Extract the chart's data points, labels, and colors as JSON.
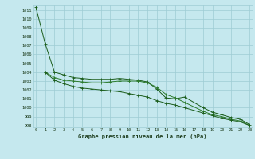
{
  "title": "Graphe pression niveau de la mer (hPa)",
  "background_color": "#c5e8ee",
  "grid_color": "#9eccd4",
  "line_color_dark": "#1a5c1a",
  "line_color_mid": "#2a7a2a",
  "xlim": [
    -0.3,
    23.3
  ],
  "ylim": [
    997.8,
    1011.6
  ],
  "yticks": [
    998,
    999,
    1000,
    1001,
    1002,
    1003,
    1004,
    1005,
    1006,
    1007,
    1008,
    1009,
    1010,
    1011
  ],
  "xticks": [
    0,
    1,
    2,
    3,
    4,
    5,
    6,
    7,
    8,
    9,
    10,
    11,
    12,
    13,
    14,
    15,
    16,
    17,
    18,
    19,
    20,
    21,
    22,
    23
  ],
  "series1": {
    "x": [
      0,
      1,
      2,
      3,
      4,
      5,
      6,
      7,
      8,
      9,
      10,
      11,
      12,
      13,
      14,
      15,
      16,
      17,
      18,
      19,
      20,
      21,
      22,
      23
    ],
    "y": [
      1011.3,
      1007.2,
      1004.0,
      1003.7,
      1003.4,
      1003.3,
      1003.2,
      1003.2,
      1003.2,
      1003.3,
      1003.2,
      1003.1,
      1002.9,
      1002.1,
      1001.1,
      1001.0,
      1001.2,
      1000.6,
      1000.0,
      999.5,
      999.2,
      998.9,
      998.7,
      998.1
    ]
  },
  "series2": {
    "x": [
      1,
      2,
      3,
      4,
      5,
      6,
      7,
      8,
      9,
      10,
      11,
      12,
      13,
      14,
      15,
      16,
      17,
      18,
      19,
      20,
      21,
      22,
      23
    ],
    "y": [
      1004.0,
      1003.4,
      1003.1,
      1003.0,
      1002.9,
      1002.8,
      1002.8,
      1002.9,
      1003.0,
      1003.0,
      1003.0,
      1002.8,
      1002.3,
      1001.5,
      1001.1,
      1000.6,
      1000.1,
      999.6,
      999.2,
      999.0,
      998.7,
      998.5,
      998.0
    ]
  },
  "series3": {
    "x": [
      1,
      2,
      3,
      4,
      5,
      6,
      7,
      8,
      9,
      10,
      11,
      12,
      13,
      14,
      15,
      16,
      17,
      18,
      19,
      20,
      21,
      22,
      23
    ],
    "y": [
      1004.0,
      1003.1,
      1002.7,
      1002.4,
      1002.2,
      1002.1,
      1002.0,
      1001.9,
      1001.8,
      1001.6,
      1001.4,
      1001.2,
      1000.8,
      1000.5,
      1000.3,
      1000.0,
      999.7,
      999.4,
      999.1,
      998.8,
      998.6,
      998.4,
      998.0
    ]
  }
}
